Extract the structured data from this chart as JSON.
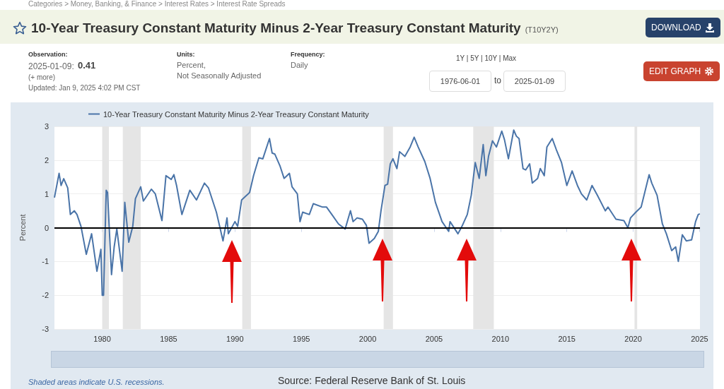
{
  "chart_data": {
    "type": "line",
    "title": "10-Year Treasury Constant Maturity Minus 2-Year Treasury Constant Maturity",
    "subtitle": "(T10Y2Y)",
    "ylabel": "Percent",
    "series": [
      {
        "name": "10-Year Treasury Constant Maturity Minus 2-Year Treasury Constant Maturity",
        "color": "#4a74a8",
        "x": [
          1976.4,
          1976.75,
          1976.9,
          1977.1,
          1977.4,
          1977.6,
          1977.9,
          1978.1,
          1978.4,
          1978.8,
          1979.2,
          1979.6,
          1979.9,
          1980.0,
          1980.1,
          1980.3,
          1980.4,
          1980.7,
          1980.9,
          1981.1,
          1981.5,
          1981.7,
          1982.0,
          1982.3,
          1982.5,
          1982.9,
          1983.1,
          1983.7,
          1984.0,
          1984.5,
          1984.8,
          1985.2,
          1985.4,
          1985.6,
          1986.0,
          1986.6,
          1987.1,
          1987.7,
          1988.0,
          1988.6,
          1989.1,
          1989.4,
          1989.5,
          1990.0,
          1990.2,
          1990.5,
          1991.1,
          1991.4,
          1991.8,
          1992.1,
          1992.6,
          1992.8,
          1993.0,
          1993.4,
          1993.7,
          1994.1,
          1994.3,
          1994.7,
          1994.9,
          1995.1,
          1995.6,
          1995.9,
          1996.6,
          1996.9,
          1997.3,
          1997.8,
          1998.3,
          1998.7,
          1998.9,
          1999.2,
          1999.6,
          1999.9,
          2000.1,
          2000.5,
          2000.8,
          2001.0,
          2001.3,
          2001.5,
          2001.7,
          2001.9,
          2002.2,
          2002.4,
          2002.8,
          2003.2,
          2003.5,
          2003.8,
          2004.3,
          2004.7,
          2005.1,
          2005.6,
          2006.1,
          2006.2,
          2006.8,
          2007.1,
          2007.5,
          2007.8,
          2008.1,
          2008.4,
          2008.7,
          2008.9,
          2009.1,
          2009.4,
          2009.7,
          2010.1,
          2010.3,
          2010.6,
          2011.0,
          2011.2,
          2011.4,
          2011.7,
          2011.9,
          2012.2,
          2012.4,
          2012.8,
          2013.0,
          2013.3,
          2013.5,
          2013.9,
          2014.2,
          2014.6,
          2015.0,
          2015.4,
          2015.8,
          2016.1,
          2016.5,
          2016.9,
          2017.3,
          2017.9,
          2018.1,
          2018.7,
          2019.3,
          2019.6,
          2019.8,
          2020.2,
          2020.6,
          2021.2,
          2021.4,
          2021.8,
          2022.2,
          2022.5,
          2022.9,
          2023.2,
          2023.4,
          2023.7,
          2024.0,
          2024.4,
          2024.7,
          2024.9,
          2025.02
        ],
        "values": [
          0.89,
          1.61,
          1.25,
          1.45,
          1.18,
          0.39,
          0.5,
          0.39,
          0.04,
          -0.79,
          -0.18,
          -1.29,
          -0.64,
          -2.0,
          -2.0,
          1.11,
          1.04,
          -1.39,
          -0.57,
          -0.04,
          -1.29,
          0.75,
          -0.43,
          0.04,
          0.86,
          1.21,
          0.79,
          1.14,
          1.0,
          0.21,
          1.54,
          1.43,
          1.57,
          1.25,
          0.39,
          1.11,
          0.82,
          1.32,
          1.18,
          0.46,
          -0.39,
          0.29,
          -0.18,
          0.18,
          0.04,
          0.82,
          1.04,
          1.54,
          2.07,
          2.04,
          2.64,
          2.21,
          2.18,
          1.82,
          1.46,
          1.61,
          1.21,
          1.0,
          0.18,
          0.46,
          0.39,
          0.71,
          0.61,
          0.61,
          0.39,
          0.11,
          -0.04,
          0.5,
          0.18,
          0.29,
          0.25,
          0.07,
          -0.46,
          -0.32,
          -0.11,
          0.5,
          1.25,
          1.29,
          1.89,
          2.04,
          1.75,
          2.25,
          2.11,
          2.39,
          2.68,
          2.39,
          1.96,
          1.46,
          0.75,
          0.18,
          -0.11,
          0.18,
          -0.18,
          0.04,
          0.39,
          0.96,
          1.93,
          1.46,
          2.46,
          1.54,
          2.11,
          2.57,
          2.39,
          2.86,
          2.61,
          2.04,
          2.89,
          2.71,
          2.64,
          1.75,
          1.71,
          1.89,
          1.32,
          1.46,
          1.75,
          1.54,
          2.39,
          2.64,
          2.32,
          1.93,
          1.25,
          1.68,
          1.25,
          1.0,
          0.82,
          1.25,
          0.96,
          0.5,
          0.61,
          0.25,
          0.21,
          0.0,
          0.29,
          0.46,
          0.61,
          1.57,
          1.32,
          0.96,
          0.11,
          -0.18,
          -0.68,
          -0.57,
          -1.0,
          -0.21,
          -0.39,
          -0.36,
          0.18,
          0.39,
          0.41
        ]
      }
    ],
    "xlim": [
      1976.4,
      2025.03
    ],
    "xticks": [
      1980,
      1985,
      1990,
      1995,
      2000,
      2005,
      2010,
      2015,
      2020,
      2025
    ],
    "ylim": [
      -3,
      3
    ],
    "yticks": [
      -3,
      -2,
      -1,
      0,
      1,
      2,
      3
    ],
    "grid": "y",
    "legend": "top left",
    "marker": "none",
    "line_style": "solid",
    "ref_lines": [
      {
        "axis": "y",
        "value": 0,
        "color": "#000000"
      }
    ],
    "bands": [
      {
        "axis": "x",
        "from": 1980.0,
        "to": 1980.5,
        "color": "#e5e5e5"
      },
      {
        "axis": "x",
        "from": 1981.55,
        "to": 1982.9,
        "color": "#e5e5e5"
      },
      {
        "axis": "x",
        "from": 1990.55,
        "to": 1991.2,
        "color": "#e5e5e5"
      },
      {
        "axis": "x",
        "from": 2001.2,
        "to": 2001.9,
        "color": "#e5e5e5"
      },
      {
        "axis": "x",
        "from": 2007.95,
        "to": 2009.5,
        "color": "#e5e5e5"
      },
      {
        "axis": "x",
        "from": 2020.1,
        "to": 2020.3,
        "color": "#e5e5e5"
      }
    ],
    "annotations": [
      "Categories > Money, Banking, & Finance > Interest Rates > Interest Rate Spreads",
      "Observation:",
      "2025-01-09:",
      "0.41",
      "(+ more)",
      "Updated: Jan 9, 2025 4:02 PM CST",
      "Units:",
      "Percent,",
      "Not Seasonally Adjusted",
      "Frequency:",
      "Daily",
      "1Y | 5Y | 10Y | Max",
      "1976-06-01",
      "to",
      "2025-01-09",
      "DOWNLOAD",
      "EDIT GRAPH",
      "Shaded areas indicate U.S. recessions.",
      "Source: Federal Reserve Bank of St. Louis"
    ]
  }
}
